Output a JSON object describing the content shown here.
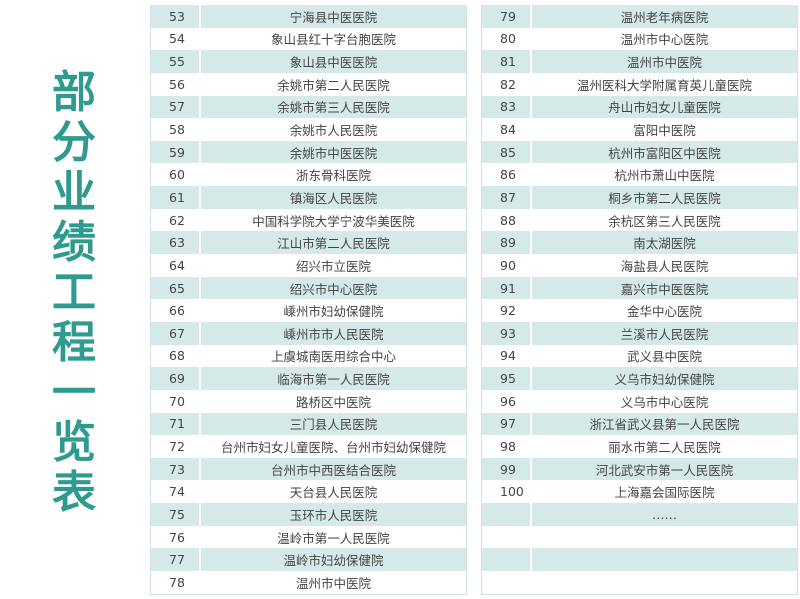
{
  "title": "部分业绩工程一览表",
  "colors": {
    "accent": "#2f9a8e",
    "row_shade": "#d5e9e9"
  },
  "left_table": [
    [
      "53",
      "宁海县中医医院"
    ],
    [
      "54",
      "象山县红十字台胞医院"
    ],
    [
      "55",
      "象山县中医医院"
    ],
    [
      "56",
      "余姚市第二人民医院"
    ],
    [
      "57",
      "余姚市第三人民医院"
    ],
    [
      "58",
      "余姚市人民医院"
    ],
    [
      "59",
      "余姚市中医医院"
    ],
    [
      "60",
      "浙东骨科医院"
    ],
    [
      "61",
      "镇海区人民医院"
    ],
    [
      "62",
      "中国科学院大学宁波华美医院"
    ],
    [
      "63",
      "江山市第二人民医院"
    ],
    [
      "64",
      "绍兴市立医院"
    ],
    [
      "65",
      "绍兴市中心医院"
    ],
    [
      "66",
      "嵊州市妇幼保健院"
    ],
    [
      "67",
      "嵊州市市人民医院"
    ],
    [
      "68",
      "上虞城南医用综合中心"
    ],
    [
      "69",
      "临海市第一人民医院"
    ],
    [
      "70",
      "路桥区中医院"
    ],
    [
      "71",
      "三门县人民医院"
    ],
    [
      "72",
      "台州市妇女儿童医院、台州市妇幼保健院"
    ],
    [
      "73",
      "台州市中西医结合医院"
    ],
    [
      "74",
      "天台县人民医院"
    ],
    [
      "75",
      "玉环市人民医院"
    ],
    [
      "76",
      "温岭市第一人民医院"
    ],
    [
      "77",
      "温岭市妇幼保健院"
    ],
    [
      "78",
      "温州市中医院"
    ]
  ],
  "right_table": [
    [
      "79",
      "温州老年病医院"
    ],
    [
      "80",
      "温州市中心医院"
    ],
    [
      "81",
      "温州市中医院"
    ],
    [
      "82",
      "温州医科大学附属育英儿童医院"
    ],
    [
      "83",
      "舟山市妇女儿童医院"
    ],
    [
      "84",
      "富阳中医院"
    ],
    [
      "85",
      "杭州市富阳区中医院"
    ],
    [
      "86",
      "杭州市萧山中医院"
    ],
    [
      "87",
      "桐乡市第二人民医院"
    ],
    [
      "88",
      "余杭区第三人民医院"
    ],
    [
      "89",
      "南太湖医院"
    ],
    [
      "90",
      "海盐县人民医院"
    ],
    [
      "91",
      "嘉兴市中医医院"
    ],
    [
      "92",
      "金华中心医院"
    ],
    [
      "93",
      "兰溪市人民医院"
    ],
    [
      "94",
      "武义县中医院"
    ],
    [
      "95",
      "义乌市妇幼保健院"
    ],
    [
      "96",
      "义乌市中心医院"
    ],
    [
      "97",
      "浙江省武义县第一人民医院"
    ],
    [
      "98",
      "丽水市第二人民医院"
    ],
    [
      "99",
      "河北武安市第一人民医院"
    ],
    [
      "100",
      "上海嘉会国际医院"
    ],
    [
      "",
      "……"
    ],
    [
      "",
      ""
    ],
    [
      "",
      ""
    ],
    [
      "",
      ""
    ]
  ]
}
